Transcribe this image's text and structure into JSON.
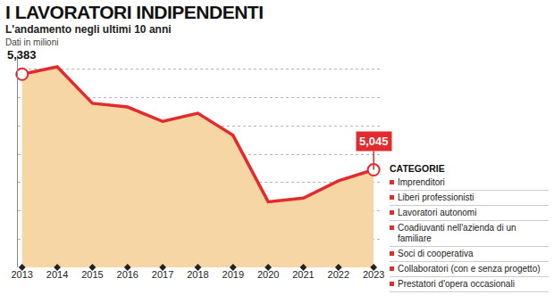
{
  "chart_data": {
    "type": "line",
    "title": "I LAVORATORI INDIPENDENTI",
    "subtitle": "L'andamento negli ultimi 10 anni",
    "unit_note": "Dati in milioni",
    "categories": [
      "2013",
      "2014",
      "2015",
      "2016",
      "2017",
      "2018",
      "2019",
      "2020",
      "2021",
      "2022",
      "2023"
    ],
    "values": [
      5.383,
      5.409,
      5.28,
      5.267,
      5.216,
      5.245,
      5.167,
      4.932,
      4.945,
      5.006,
      5.045
    ],
    "color": "#e32a2e",
    "ylim": [
      4.7,
      5.45
    ],
    "yticks": [
      4.8,
      4.9,
      5.0,
      5.1,
      5.2,
      5.3,
      5.4
    ],
    "grid": true,
    "tick_labels": "x",
    "annotations": [
      {
        "category": "2013",
        "value": 5.383,
        "label": "5,383"
      },
      {
        "category": "2023",
        "value": 5.045,
        "label": "5,045"
      }
    ],
    "side_list": {
      "title": "CATEGORIE",
      "items": [
        "Imprenditori",
        "Liberi professionisti",
        "Lavoratori autonomi",
        "Coadiuvanti nell'azienda di un familiare",
        "Soci di cooperativa",
        "Collaboratori (con e senza progetto)",
        "Prestatori d'opera occasionali"
      ]
    }
  }
}
